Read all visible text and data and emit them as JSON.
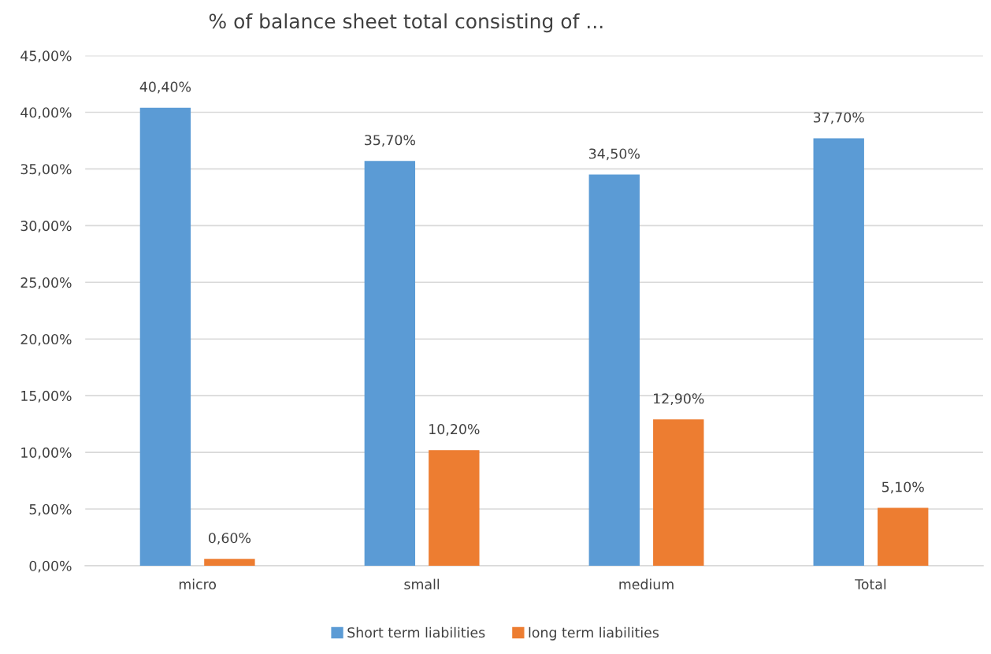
{
  "chart_data": {
    "type": "bar",
    "title": "% of balance sheet total consisting of ...",
    "categories": [
      "micro",
      "small",
      "medium",
      "Total"
    ],
    "series": [
      {
        "name": "Short term liabilities",
        "color": "#5b9bd5",
        "values": [
          40.4,
          35.7,
          34.5,
          37.7
        ],
        "value_labels": [
          "40,40%",
          "35,70%",
          "34,50%",
          "37,70%"
        ]
      },
      {
        "name": "long term liabilities",
        "color": "#ed7d31",
        "values": [
          0.6,
          10.2,
          12.9,
          5.1
        ],
        "value_labels": [
          "0,60%",
          "10,20%",
          "12,90%",
          "5,10%"
        ]
      }
    ],
    "ylim": [
      0,
      45
    ],
    "yticks": [
      {
        "value": 0,
        "label": "0,00%"
      },
      {
        "value": 5,
        "label": "5,00%"
      },
      {
        "value": 10,
        "label": "10,00%"
      },
      {
        "value": 15,
        "label": "15,00%"
      },
      {
        "value": 20,
        "label": "20,00%"
      },
      {
        "value": 25,
        "label": "25,00%"
      },
      {
        "value": 30,
        "label": "30,00%"
      },
      {
        "value": 35,
        "label": "35,00%"
      },
      {
        "value": 40,
        "label": "40,00%"
      },
      {
        "value": 45,
        "label": "45,00%"
      }
    ],
    "grid": "y",
    "legend": "bottom"
  }
}
